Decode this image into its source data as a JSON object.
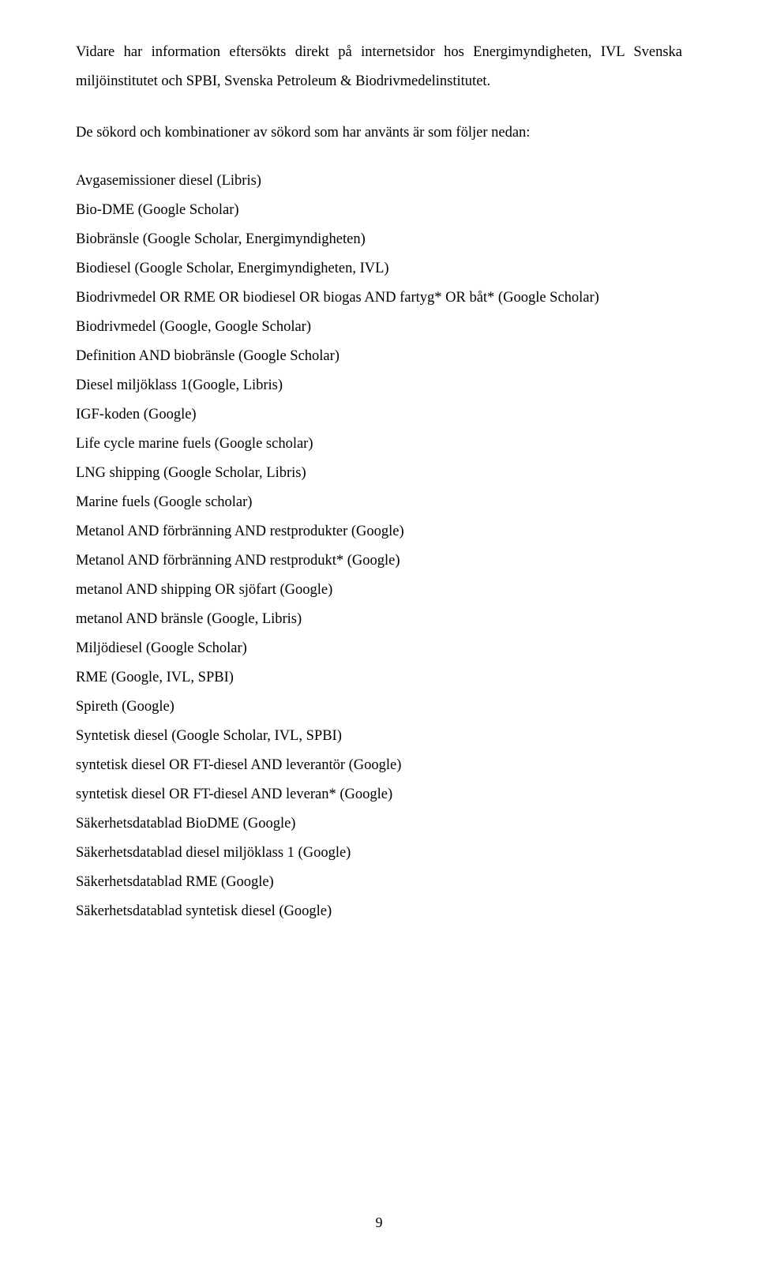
{
  "intro_paragraph": "Vidare har information eftersökts direkt på internetsidor hos Energimyndigheten, IVL Svenska miljöinstitutet och SPBI, Svenska Petroleum & Biodrivmedelinstitutet.",
  "section_intro": "De sökord och kombinationer av sökord som har använts är som följer nedan:",
  "search_terms": [
    "Avgasemissioner diesel (Libris)",
    "Bio-DME (Google Scholar)",
    "Biobränsle (Google Scholar, Energimyndigheten)",
    "Biodiesel (Google Scholar, Energimyndigheten, IVL)",
    "Biodrivmedel OR RME OR biodiesel OR biogas AND fartyg* OR båt* (Google Scholar)",
    "Biodrivmedel (Google, Google Scholar)",
    "Definition AND biobränsle (Google Scholar)",
    "Diesel miljöklass 1(Google, Libris)",
    "IGF-koden (Google)",
    "Life cycle marine fuels (Google scholar)",
    "LNG shipping (Google Scholar, Libris)",
    "Marine fuels (Google scholar)",
    "Metanol AND förbränning AND restprodukter (Google)",
    "Metanol AND förbränning AND restprodukt* (Google)",
    "metanol AND shipping OR sjöfart (Google)",
    "metanol AND bränsle (Google, Libris)",
    "Miljödiesel (Google Scholar)",
    "RME (Google, IVL, SPBI)",
    "Spireth (Google)",
    "Syntetisk diesel (Google Scholar, IVL, SPBI)",
    "syntetisk diesel OR FT-diesel AND leverantör (Google)",
    "syntetisk diesel OR FT-diesel AND leveran* (Google)",
    "Säkerhetsdatablad BioDME (Google)",
    "Säkerhetsdatablad diesel miljöklass 1 (Google)",
    "Säkerhetsdatablad RME (Google)",
    "Säkerhetsdatablad syntetisk diesel (Google)"
  ],
  "page_number": "9"
}
